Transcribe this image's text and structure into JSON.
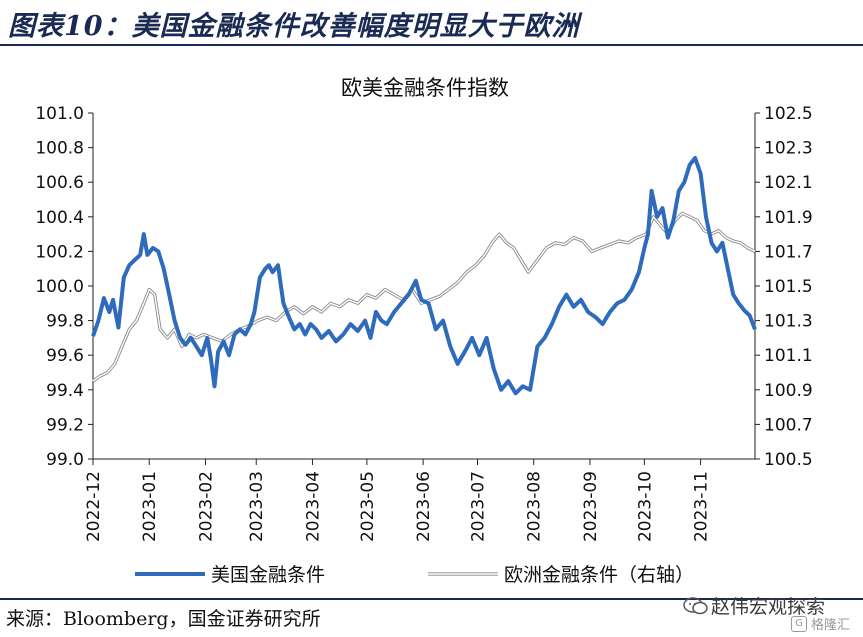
{
  "figure": {
    "title": "图表10：美国金融条件改善幅度明显大于欧洲",
    "source": "来源：Bloomberg，国金证券研究所"
  },
  "watermark": {
    "main": "赵伟宏观探索",
    "sub": "格隆汇"
  },
  "chart_data": {
    "type": "line",
    "title": "欧美金融条件指数",
    "x_ticks": [
      "2022-12",
      "2023-01",
      "2023-02",
      "2023-03",
      "2023-04",
      "2023-05",
      "2023-06",
      "2023-07",
      "2023-08",
      "2023-09",
      "2023-10",
      "2023-11"
    ],
    "x_range": [
      "2022-12-01",
      "2023-12-01"
    ],
    "y_left": {
      "range": [
        99.0,
        101.0
      ],
      "ticks": [
        "99.0",
        "99.2",
        "99.4",
        "99.6",
        "99.8",
        "100.0",
        "100.2",
        "100.4",
        "100.6",
        "100.8",
        "101.0"
      ]
    },
    "y_right": {
      "range": [
        100.5,
        102.5
      ],
      "ticks": [
        "100.5",
        "100.7",
        "100.9",
        "101.1",
        "101.3",
        "101.5",
        "101.7",
        "101.9",
        "102.1",
        "102.3",
        "102.5"
      ]
    },
    "series": [
      {
        "name": "美国金融条件",
        "axis": "left",
        "color": "#2e6bbd",
        "points": [
          [
            "2022-12-01",
            99.71
          ],
          [
            "2022-12-04",
            99.8
          ],
          [
            "2022-12-07",
            99.93
          ],
          [
            "2022-12-10",
            99.85
          ],
          [
            "2022-12-12",
            99.92
          ],
          [
            "2022-12-15",
            99.76
          ],
          [
            "2022-12-18",
            100.05
          ],
          [
            "2022-12-21",
            100.12
          ],
          [
            "2022-12-24",
            100.15
          ],
          [
            "2022-12-27",
            100.18
          ],
          [
            "2022-12-29",
            100.3
          ],
          [
            "2022-12-31",
            100.18
          ],
          [
            "2023-01-03",
            100.22
          ],
          [
            "2023-01-06",
            100.2
          ],
          [
            "2023-01-09",
            100.1
          ],
          [
            "2023-01-12",
            99.95
          ],
          [
            "2023-01-15",
            99.8
          ],
          [
            "2023-01-18",
            99.7
          ],
          [
            "2023-01-21",
            99.66
          ],
          [
            "2023-01-24",
            99.7
          ],
          [
            "2023-01-27",
            99.65
          ],
          [
            "2023-01-30",
            99.6
          ],
          [
            "2023-02-02",
            99.7
          ],
          [
            "2023-02-04",
            99.58
          ],
          [
            "2023-02-06",
            99.42
          ],
          [
            "2023-02-08",
            99.62
          ],
          [
            "2023-02-11",
            99.68
          ],
          [
            "2023-02-14",
            99.6
          ],
          [
            "2023-02-17",
            99.72
          ],
          [
            "2023-02-20",
            99.75
          ],
          [
            "2023-02-23",
            99.72
          ],
          [
            "2023-02-26",
            99.78
          ],
          [
            "2023-02-28",
            99.85
          ],
          [
            "2023-03-03",
            100.05
          ],
          [
            "2023-03-06",
            100.1
          ],
          [
            "2023-03-08",
            100.12
          ],
          [
            "2023-03-10",
            100.08
          ],
          [
            "2023-03-13",
            100.12
          ],
          [
            "2023-03-16",
            99.9
          ],
          [
            "2023-03-19",
            99.82
          ],
          [
            "2023-03-22",
            99.75
          ],
          [
            "2023-03-25",
            99.78
          ],
          [
            "2023-03-28",
            99.72
          ],
          [
            "2023-03-31",
            99.78
          ],
          [
            "2023-04-03",
            99.75
          ],
          [
            "2023-04-06",
            99.7
          ],
          [
            "2023-04-10",
            99.74
          ],
          [
            "2023-04-14",
            99.68
          ],
          [
            "2023-04-18",
            99.72
          ],
          [
            "2023-04-22",
            99.78
          ],
          [
            "2023-04-26",
            99.74
          ],
          [
            "2023-04-30",
            99.8
          ],
          [
            "2023-05-03",
            99.7
          ],
          [
            "2023-05-06",
            99.85
          ],
          [
            "2023-05-09",
            99.8
          ],
          [
            "2023-05-12",
            99.78
          ],
          [
            "2023-05-16",
            99.85
          ],
          [
            "2023-05-20",
            99.9
          ],
          [
            "2023-05-24",
            99.95
          ],
          [
            "2023-05-28",
            100.03
          ],
          [
            "2023-05-31",
            99.92
          ],
          [
            "2023-06-04",
            99.9
          ],
          [
            "2023-06-08",
            99.75
          ],
          [
            "2023-06-12",
            99.8
          ],
          [
            "2023-06-16",
            99.65
          ],
          [
            "2023-06-20",
            99.55
          ],
          [
            "2023-06-24",
            99.62
          ],
          [
            "2023-06-28",
            99.7
          ],
          [
            "2023-07-02",
            99.6
          ],
          [
            "2023-07-06",
            99.7
          ],
          [
            "2023-07-10",
            99.52
          ],
          [
            "2023-07-14",
            99.4
          ],
          [
            "2023-07-18",
            99.45
          ],
          [
            "2023-07-22",
            99.38
          ],
          [
            "2023-07-26",
            99.42
          ],
          [
            "2023-07-30",
            99.4
          ],
          [
            "2023-08-03",
            99.65
          ],
          [
            "2023-08-07",
            99.7
          ],
          [
            "2023-08-11",
            99.78
          ],
          [
            "2023-08-15",
            99.88
          ],
          [
            "2023-08-19",
            99.95
          ],
          [
            "2023-08-23",
            99.88
          ],
          [
            "2023-08-27",
            99.92
          ],
          [
            "2023-08-31",
            99.85
          ],
          [
            "2023-09-04",
            99.82
          ],
          [
            "2023-09-08",
            99.78
          ],
          [
            "2023-09-12",
            99.85
          ],
          [
            "2023-09-16",
            99.9
          ],
          [
            "2023-09-20",
            99.92
          ],
          [
            "2023-09-24",
            99.98
          ],
          [
            "2023-09-28",
            100.08
          ],
          [
            "2023-10-01",
            100.22
          ],
          [
            "2023-10-03",
            100.3
          ],
          [
            "2023-10-05",
            100.55
          ],
          [
            "2023-10-08",
            100.4
          ],
          [
            "2023-10-11",
            100.45
          ],
          [
            "2023-10-14",
            100.28
          ],
          [
            "2023-10-17",
            100.38
          ],
          [
            "2023-10-20",
            100.55
          ],
          [
            "2023-10-23",
            100.6
          ],
          [
            "2023-10-26",
            100.7
          ],
          [
            "2023-10-29",
            100.74
          ],
          [
            "2023-11-01",
            100.65
          ],
          [
            "2023-11-04",
            100.4
          ],
          [
            "2023-11-07",
            100.25
          ],
          [
            "2023-11-10",
            100.2
          ],
          [
            "2023-11-13",
            100.25
          ],
          [
            "2023-11-16",
            100.1
          ],
          [
            "2023-11-19",
            99.95
          ],
          [
            "2023-11-22",
            99.9
          ],
          [
            "2023-11-25",
            99.86
          ],
          [
            "2023-11-28",
            99.83
          ],
          [
            "2023-12-01",
            99.75
          ]
        ]
      },
      {
        "name": "欧洲金融条件（右轴）",
        "axis": "right",
        "color": "#c0c0c0",
        "points": [
          [
            "2022-12-01",
            100.95
          ],
          [
            "2022-12-05",
            100.98
          ],
          [
            "2022-12-09",
            101.0
          ],
          [
            "2022-12-13",
            101.05
          ],
          [
            "2022-12-17",
            101.15
          ],
          [
            "2022-12-21",
            101.25
          ],
          [
            "2022-12-25",
            101.3
          ],
          [
            "2022-12-29",
            101.4
          ],
          [
            "2023-01-01",
            101.48
          ],
          [
            "2023-01-04",
            101.45
          ],
          [
            "2023-01-07",
            101.25
          ],
          [
            "2023-01-11",
            101.2
          ],
          [
            "2023-01-15",
            101.25
          ],
          [
            "2023-01-19",
            101.15
          ],
          [
            "2023-01-23",
            101.22
          ],
          [
            "2023-01-27",
            101.2
          ],
          [
            "2023-01-31",
            101.22
          ],
          [
            "2023-02-05",
            101.2
          ],
          [
            "2023-02-10",
            101.18
          ],
          [
            "2023-02-15",
            101.22
          ],
          [
            "2023-02-20",
            101.25
          ],
          [
            "2023-02-25",
            101.27
          ],
          [
            "2023-03-02",
            101.3
          ],
          [
            "2023-03-07",
            101.32
          ],
          [
            "2023-03-12",
            101.3
          ],
          [
            "2023-03-17",
            101.35
          ],
          [
            "2023-03-22",
            101.38
          ],
          [
            "2023-03-27",
            101.34
          ],
          [
            "2023-04-01",
            101.38
          ],
          [
            "2023-04-06",
            101.35
          ],
          [
            "2023-04-11",
            101.4
          ],
          [
            "2023-04-16",
            101.38
          ],
          [
            "2023-04-21",
            101.42
          ],
          [
            "2023-04-26",
            101.4
          ],
          [
            "2023-05-01",
            101.45
          ],
          [
            "2023-05-06",
            101.43
          ],
          [
            "2023-05-11",
            101.48
          ],
          [
            "2023-05-16",
            101.45
          ],
          [
            "2023-05-21",
            101.42
          ],
          [
            "2023-05-26",
            101.48
          ],
          [
            "2023-05-31",
            101.4
          ],
          [
            "2023-06-05",
            101.42
          ],
          [
            "2023-06-10",
            101.44
          ],
          [
            "2023-06-15",
            101.48
          ],
          [
            "2023-06-20",
            101.52
          ],
          [
            "2023-06-25",
            101.58
          ],
          [
            "2023-06-30",
            101.62
          ],
          [
            "2023-07-05",
            101.68
          ],
          [
            "2023-07-09",
            101.75
          ],
          [
            "2023-07-13",
            101.8
          ],
          [
            "2023-07-17",
            101.75
          ],
          [
            "2023-07-21",
            101.72
          ],
          [
            "2023-07-25",
            101.65
          ],
          [
            "2023-07-29",
            101.58
          ],
          [
            "2023-08-03",
            101.65
          ],
          [
            "2023-08-08",
            101.72
          ],
          [
            "2023-08-13",
            101.75
          ],
          [
            "2023-08-18",
            101.74
          ],
          [
            "2023-08-23",
            101.78
          ],
          [
            "2023-08-28",
            101.76
          ],
          [
            "2023-09-02",
            101.7
          ],
          [
            "2023-09-07",
            101.72
          ],
          [
            "2023-09-12",
            101.74
          ],
          [
            "2023-09-17",
            101.76
          ],
          [
            "2023-09-22",
            101.75
          ],
          [
            "2023-09-27",
            101.78
          ],
          [
            "2023-10-02",
            101.8
          ],
          [
            "2023-10-06",
            101.9
          ],
          [
            "2023-10-10",
            101.85
          ],
          [
            "2023-10-14",
            101.8
          ],
          [
            "2023-10-18",
            101.88
          ],
          [
            "2023-10-22",
            101.92
          ],
          [
            "2023-10-26",
            101.9
          ],
          [
            "2023-10-30",
            101.88
          ],
          [
            "2023-11-03",
            101.82
          ],
          [
            "2023-11-07",
            101.8
          ],
          [
            "2023-11-11",
            101.82
          ],
          [
            "2023-11-15",
            101.78
          ],
          [
            "2023-11-19",
            101.76
          ],
          [
            "2023-11-23",
            101.75
          ],
          [
            "2023-11-27",
            101.72
          ],
          [
            "2023-12-01",
            101.7
          ]
        ]
      }
    ],
    "legend": "bottom",
    "grid": false
  }
}
